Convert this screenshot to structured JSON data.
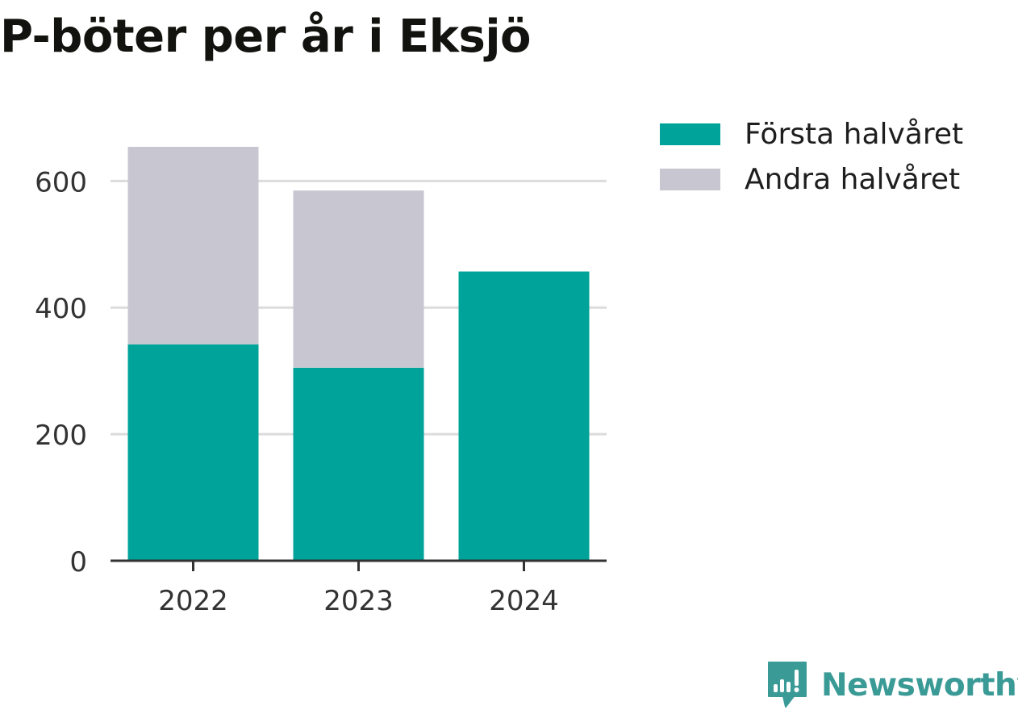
{
  "chart_data": {
    "type": "bar",
    "stacked": true,
    "title": "P-böter per år i Eksjö",
    "categories": [
      "2022",
      "2023",
      "2024"
    ],
    "series": [
      {
        "name": "Första halvåret",
        "values": [
          342,
          305,
          457
        ],
        "color": "#00a39a"
      },
      {
        "name": "Andra halvåret",
        "values": [
          312,
          280,
          0
        ],
        "color": "#c8c7d1"
      }
    ],
    "yticks": [
      0,
      200,
      400,
      600
    ],
    "ylim": [
      0,
      654
    ],
    "grid": true,
    "legend": "top-right"
  },
  "brand": {
    "name": "Newsworthy",
    "icon": "newsworthy-logo-icon",
    "color": "#3a9a96"
  }
}
